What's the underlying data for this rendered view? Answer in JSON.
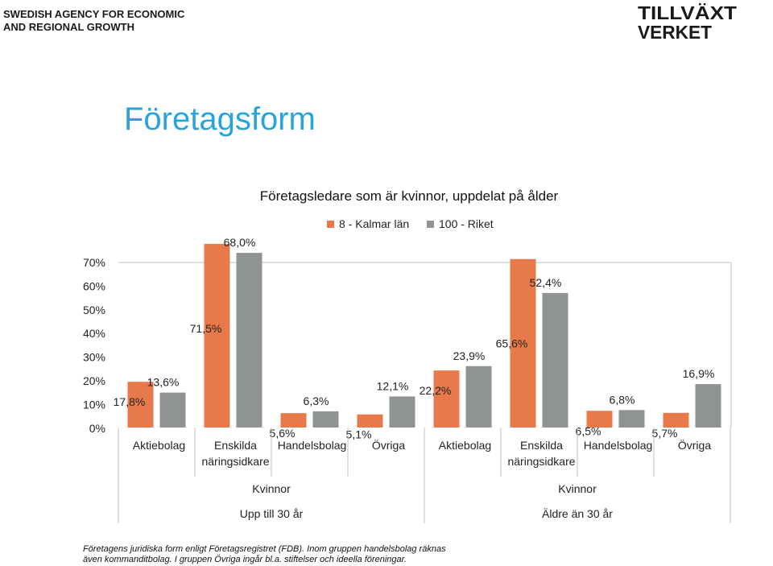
{
  "agency": {
    "line1": "SWEDISH AGENCY FOR ECONOMIC",
    "line2": "AND REGIONAL GROWTH"
  },
  "logo": {
    "line1": "TILLVÄXT",
    "line2": "VERKET",
    "color": "#1a1a1a"
  },
  "page_title": "Företagsform",
  "colors": {
    "kalmar": "#e8794a",
    "riket": "#8f9393",
    "title": "#29a3dc",
    "axis_line": "#c0c0c0"
  },
  "footnote": {
    "line1": "Företagens juridiska form enligt Företagsregistret (FDB). Inom gruppen handelsbolag räknas",
    "line2": "även kommanditbolag. I gruppen Övriga ingår bl.a. stiftelser och ideella föreningar."
  },
  "chart_data": {
    "type": "bar",
    "title": "Företagsledare som är kvinnor, uppdelat på ålder",
    "y_ticks": [
      "70%",
      "60%",
      "50%",
      "40%",
      "30%",
      "20%",
      "10%",
      "0%"
    ],
    "ylim": [
      0,
      70
    ],
    "legend_position": "top",
    "series": [
      {
        "name": "8 - Kalmar län",
        "color": "#e8794a"
      },
      {
        "name": "100 - Riket",
        "color": "#8f9393"
      }
    ],
    "groups": [
      {
        "level1": "Kvinnor",
        "level2": "Upp till 30 år",
        "categories": [
          {
            "label_lines": [
              "Aktiebolag"
            ],
            "values": [
              17.8,
              13.6
            ],
            "labels": [
              "17,8%",
              "13,6%"
            ]
          },
          {
            "label_lines": [
              "Enskilda",
              "näringsidkare"
            ],
            "values": [
              71.5,
              68.0
            ],
            "labels": [
              "71,5%",
              "68,0%"
            ]
          },
          {
            "label_lines": [
              "Handelsbolag"
            ],
            "values": [
              5.6,
              6.3
            ],
            "labels": [
              "5,6%",
              "6,3%"
            ]
          },
          {
            "label_lines": [
              "Övriga"
            ],
            "values": [
              5.1,
              12.1
            ],
            "labels": [
              "5,1%",
              "12,1%"
            ]
          }
        ]
      },
      {
        "level1": "Kvinnor",
        "level2": "Äldre än 30 år",
        "categories": [
          {
            "label_lines": [
              "Aktiebolag"
            ],
            "values": [
              22.2,
              23.9
            ],
            "labels": [
              "22,2%",
              "23,9%"
            ]
          },
          {
            "label_lines": [
              "Enskilda",
              "näringsidkare"
            ],
            "values": [
              65.6,
              52.4
            ],
            "labels": [
              "65,6%",
              "52,4%"
            ]
          },
          {
            "label_lines": [
              "Handelsbolag"
            ],
            "values": [
              6.5,
              6.8
            ],
            "labels": [
              "6,5%",
              "6,8%"
            ]
          },
          {
            "label_lines": [
              "Övriga"
            ],
            "values": [
              5.7,
              16.9
            ],
            "labels": [
              "5,7%",
              "16,9%"
            ]
          }
        ]
      }
    ]
  }
}
